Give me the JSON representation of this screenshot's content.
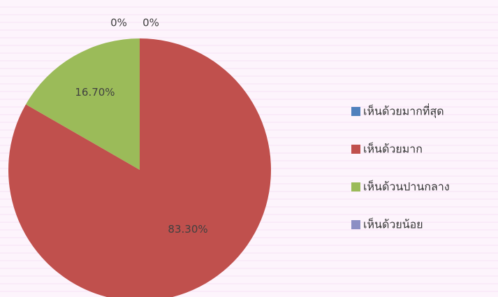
{
  "chart_data": {
    "type": "pie",
    "categories": [
      "เห็นด้วยมากที่สุด",
      "เห็นด้วยมาก",
      "เห็นด้วนปานกลาง",
      "เห็นด้วยน้อย"
    ],
    "values": [
      0,
      83.3,
      16.7,
      0
    ],
    "value_labels": [
      "0%",
      "83.30%",
      "16.70%",
      "0%"
    ],
    "colors": [
      "#4f81bd",
      "#c0504d",
      "#9bbb59",
      "#8c8fc4"
    ],
    "legend": "right"
  }
}
